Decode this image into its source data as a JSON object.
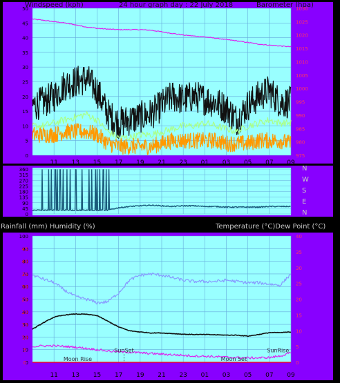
{
  "page": {
    "title": "24 hour graph day : 22 July 2018",
    "colors": {
      "background": "#000000",
      "frame": "#8800ff",
      "plot_bg": "#99ffff",
      "grid": "#66aadd",
      "axis_text": "#000000",
      "right_axis_text": "#ff3366"
    }
  },
  "x_ticks": [
    "11",
    "13",
    "15",
    "17",
    "19",
    "21",
    "23",
    "01",
    "03",
    "05",
    "07",
    "09"
  ],
  "chart_data": [
    {
      "type": "line",
      "id": "wind-baro",
      "left_label": "Windspeed (kph)",
      "right_label": "Barometer (hpa)",
      "y_left_ticks": [
        0,
        5,
        10,
        15,
        20,
        25,
        30,
        35,
        40,
        45,
        50
      ],
      "y_left_range": [
        0,
        50
      ],
      "y_right_ticks": [
        975,
        980,
        985,
        990,
        995,
        1000,
        1005,
        1010,
        1015,
        1020,
        1025,
        1030
      ],
      "y_right_range": [
        975,
        1030
      ],
      "grid": true,
      "hours": [
        9,
        10,
        11,
        12,
        13,
        14,
        15,
        16,
        17,
        18,
        19,
        20,
        21,
        22,
        23,
        24,
        25,
        26,
        27,
        28,
        29,
        30,
        31,
        32,
        33
      ],
      "series": [
        {
          "key": "barometer",
          "axis": "right",
          "color": "#dd22ee",
          "noise": 0.15,
          "values": [
            1026,
            1025.5,
            1025,
            1024.5,
            1023.8,
            1023,
            1022.5,
            1022.2,
            1022,
            1022,
            1022,
            1021.8,
            1021.2,
            1020.6,
            1020,
            1019.6,
            1019.3,
            1018.8,
            1018.3,
            1017.8,
            1017.2,
            1016.6,
            1016.2,
            1015.9,
            1015.6
          ]
        },
        {
          "key": "gust",
          "axis": "left",
          "color": "#111111",
          "noise": 5.5,
          "width": 1.2,
          "values": [
            17,
            18,
            20,
            24,
            25,
            26,
            22,
            14,
            11,
            12,
            13,
            14,
            17,
            20,
            19,
            20,
            19,
            18,
            16,
            12,
            17,
            20,
            22,
            18,
            18
          ]
        },
        {
          "key": "average",
          "axis": "left",
          "color": "#aaff88",
          "noise": 1.2,
          "values": [
            10,
            10,
            11,
            12,
            13,
            14,
            12,
            8,
            6,
            6,
            7,
            7,
            8,
            9,
            10,
            10,
            11,
            10,
            9,
            8,
            10,
            11,
            12,
            11,
            11
          ]
        },
        {
          "key": "wind",
          "axis": "left",
          "color": "#ff9900",
          "noise": 2.8,
          "values": [
            7,
            7,
            7,
            8,
            8,
            8,
            7,
            4,
            3,
            3,
            3,
            3,
            4,
            5,
            5,
            5,
            5,
            5,
            4,
            4,
            4,
            5,
            5,
            5,
            4
          ]
        }
      ]
    },
    {
      "type": "line",
      "id": "direction",
      "y_left_ticks": [
        0,
        45,
        90,
        135,
        180,
        225,
        270,
        315,
        360
      ],
      "y_left_range": [
        0,
        360
      ],
      "compass": [
        "N",
        "W",
        "S",
        "E",
        "N"
      ],
      "grid": true,
      "hours": [
        9,
        10,
        11,
        12,
        13,
        14,
        15,
        16,
        17,
        18,
        19,
        20,
        21,
        22,
        23,
        24,
        25,
        26,
        27,
        28,
        29,
        30,
        31,
        32,
        33
      ],
      "series": [
        {
          "key": "direction",
          "axis": "left",
          "color": "#1a5a7a",
          "noise": 8,
          "width": 1.4,
          "spikes_between": [
            9.6,
            16.2
          ],
          "values": [
            30,
            30,
            30,
            30,
            30,
            30,
            30,
            30,
            50,
            60,
            65,
            70,
            65,
            60,
            65,
            65,
            60,
            60,
            55,
            55,
            55,
            55,
            60,
            60,
            60
          ]
        }
      ]
    },
    {
      "type": "line",
      "id": "rain-hum-temp",
      "left_label": "Rainfall (mm)  Humidity (%)",
      "right_label": "Temperature (°C)Dew Point (°C)",
      "y_left_ticks": [
        0,
        10,
        20,
        30,
        40,
        50,
        60,
        70,
        80,
        90,
        100
      ],
      "y_left_range": [
        0,
        100
      ],
      "y_right_ticks": [
        0,
        5,
        10,
        15,
        20,
        25,
        30,
        35,
        40
      ],
      "y_right_range": [
        0,
        40
      ],
      "rain_ticks": [
        0,
        5,
        10,
        15,
        20,
        25,
        30,
        35,
        40,
        45
      ],
      "grid": true,
      "annotations": [
        {
          "text": "SunSet",
          "hour": 17.5,
          "y": 8,
          "marker": true
        },
        {
          "text": "SunRise",
          "hour": 31.8,
          "y": 8
        },
        {
          "text": "Moon Rise",
          "hour": 13.2,
          "y": 1
        },
        {
          "text": "Moon Set",
          "hour": 27.7,
          "y": 1
        }
      ],
      "hours": [
        9,
        10,
        11,
        12,
        13,
        14,
        15,
        16,
        17,
        18,
        19,
        20,
        21,
        22,
        23,
        24,
        25,
        26,
        27,
        28,
        29,
        30,
        31,
        32,
        33
      ],
      "series": [
        {
          "key": "humidity",
          "axis": "left",
          "color": "#8899ff",
          "noise": 1.2,
          "values": [
            69,
            66,
            63,
            57,
            52,
            50,
            47,
            48,
            55,
            65,
            69,
            70,
            69,
            67,
            65,
            64,
            64,
            64,
            65,
            64,
            63,
            63,
            62,
            61,
            70
          ]
        },
        {
          "key": "temperature",
          "axis": "right",
          "color": "#111111",
          "noise": 0.1,
          "width": 1.6,
          "values": [
            10.5,
            12.5,
            14.3,
            15,
            15.3,
            15.2,
            14.8,
            13,
            11.2,
            10,
            9.6,
            9.3,
            9.3,
            9.1,
            8.9,
            8.8,
            8.8,
            8.7,
            8.6,
            8.6,
            8.3,
            8.8,
            9.4,
            9.4,
            9.6
          ]
        },
        {
          "key": "dewpoint",
          "axis": "right",
          "color": "#dd22ee",
          "noise": 0.35,
          "values": [
            5,
            5.2,
            5.2,
            5,
            4.8,
            4.4,
            4,
            3.6,
            3.3,
            3.2,
            3,
            2.8,
            2.6,
            2.4,
            2.2,
            2,
            1.9,
            1.8,
            1.6,
            1.5,
            1.4,
            1.4,
            1.5,
            2,
            3
          ]
        },
        {
          "key": "rainfall",
          "axis": "left",
          "color": "#ff0000",
          "noise": 0,
          "values": [
            0,
            0,
            0,
            0,
            0,
            0,
            0,
            0,
            0,
            0,
            0,
            0,
            0,
            0,
            0,
            0,
            0,
            0,
            0,
            0,
            0,
            0,
            0,
            0,
            0
          ]
        }
      ]
    }
  ]
}
